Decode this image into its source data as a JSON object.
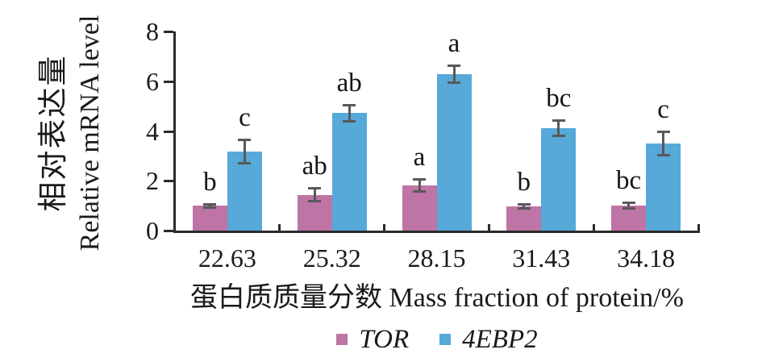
{
  "chart_data": {
    "type": "bar",
    "categories": [
      "22.63",
      "25.32",
      "28.15",
      "31.43",
      "34.18"
    ],
    "series": [
      {
        "name": "TOR",
        "color": "#be74a4",
        "values": [
          1.0,
          1.43,
          1.82,
          0.98,
          1.0
        ],
        "errors": [
          0.08,
          0.28,
          0.25,
          0.1,
          0.12
        ],
        "sig_letters": [
          "b",
          "ab",
          "a",
          "b",
          "bc"
        ]
      },
      {
        "name": "4EBP2",
        "color": "#56a9d9",
        "values": [
          3.17,
          4.72,
          6.28,
          4.11,
          3.49
        ],
        "errors": [
          0.49,
          0.34,
          0.36,
          0.33,
          0.49
        ],
        "sig_letters": [
          "c",
          "ab",
          "a",
          "bc",
          "c"
        ]
      }
    ],
    "title": "",
    "xlabel": "蛋白质质量分数 Mass fraction of protein/%",
    "ylabel_zh": "相对表达量",
    "ylabel_en": "Relative mRNA level",
    "ylim": [
      0,
      8
    ],
    "yticks": [
      0,
      2,
      4,
      6,
      8
    ],
    "grid": false,
    "legend_position": "bottom"
  },
  "colors": {
    "axis": "#2b2b2b",
    "error_bar": "#595959",
    "letter": "#141414",
    "background": "#ffffff"
  }
}
